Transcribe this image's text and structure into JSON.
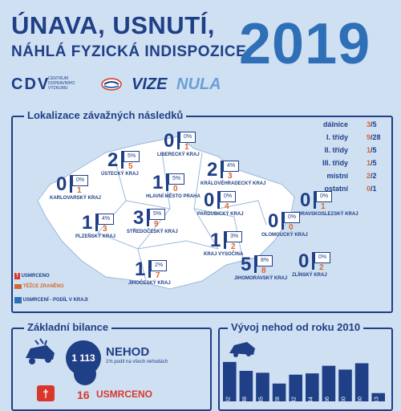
{
  "header": {
    "title_line1": "ÚNAVA, USNUTÍ,",
    "title_line2": "NÁHLÁ FYZICKÁ INDISPOZICE",
    "year": "2019"
  },
  "logos": {
    "cdv": "CDV",
    "cdv_text_1": "CENTRUM",
    "cdv_text_2": "DOPRAVNÍHO",
    "cdv_text_3": "VÝZKUMU",
    "vize": "VIZE",
    "nula": "NULA"
  },
  "map_panel": {
    "title": "Lokalizace závažných následků"
  },
  "regions": [
    {
      "name": "LIBERECKÝ KRAJ",
      "deaths": "0",
      "injured": "1",
      "pct": "0%"
    },
    {
      "name": "ÚSTECKÝ KRAJ",
      "deaths": "2",
      "injured": "5",
      "pct": "5%"
    },
    {
      "name": "KARLOVARSKÝ KRAJ",
      "deaths": "0",
      "injured": "1",
      "pct": "0%"
    },
    {
      "name": "HLAVNÍ MĚSTO PRAHA",
      "deaths": "1",
      "injured": "0",
      "pct": "5%"
    },
    {
      "name": "KRÁLOVÉHRADECKÝ KRAJ",
      "deaths": "2",
      "injured": "3",
      "pct": "4%"
    },
    {
      "name": "PLZEŇSKÝ KRAJ",
      "deaths": "1",
      "injured": "3",
      "pct": "4%"
    },
    {
      "name": "STŘEDOČESKÝ KRAJ",
      "deaths": "3",
      "injured": "9",
      "pct": "5%"
    },
    {
      "name": "PARDUBICKÝ KRAJ",
      "deaths": "0",
      "injured": "4",
      "pct": "0%"
    },
    {
      "name": "MORAVSKOSLEZSKÝ KRAJ",
      "deaths": "0",
      "injured": "1",
      "pct": "0%"
    },
    {
      "name": "OLOMOUCKÝ KRAJ",
      "deaths": "0",
      "injured": "0",
      "pct": "0%"
    },
    {
      "name": "KRAJ VYSOČINA",
      "deaths": "1",
      "injured": "2",
      "pct": "3%"
    },
    {
      "name": "JIHOČESKÝ KRAJ",
      "deaths": "1",
      "injured": "7",
      "pct": "2%"
    },
    {
      "name": "JIHOMORAVSKÝ KRAJ",
      "deaths": "5",
      "injured": "8",
      "pct": "8%"
    },
    {
      "name": "ZLÍNSKÝ KRAJ",
      "deaths": "0",
      "injured": "2",
      "pct": "0%"
    }
  ],
  "road_table": [
    {
      "label": "dálnice",
      "killed": "3",
      "total": "/5"
    },
    {
      "label": "I. třídy",
      "killed": "9",
      "total": "/28"
    },
    {
      "label": "II. třídy",
      "killed": "1",
      "total": "/5"
    },
    {
      "label": "III. třídy",
      "killed": "1",
      "total": "/5"
    },
    {
      "label": "místní",
      "killed": "2",
      "total": "/2"
    },
    {
      "label": "ostatní",
      "killed": "0",
      "total": "/1"
    }
  ],
  "legend": {
    "killed": "USMRCENO",
    "injured": "TĚŽCE ZRANĚNO",
    "share": "USMRCENÍ - PODÍL V KRAJI"
  },
  "basic_panel": {
    "title": "Základní bilance",
    "accidents_value": "1 113",
    "accidents_label": "NEHOD",
    "accidents_sub": "1% podíl na všech nehodách",
    "killed_value": "16",
    "killed_label": "USMRCENO"
  },
  "trend_panel": {
    "title": "Vývoj nehod od roku 2010"
  },
  "chart_data": {
    "type": "bar",
    "categories": [
      "2010",
      "2011",
      "2012",
      "2013",
      "2014",
      "2015",
      "2016",
      "2017",
      "2018",
      "2019"
    ],
    "values": [
      62,
      48,
      45,
      28,
      42,
      44,
      56,
      50,
      60,
      13
    ],
    "title": "",
    "xlabel": "",
    "ylabel": ""
  },
  "colors": {
    "navy": "#1f3f87",
    "blue": "#2e6fb8",
    "orange": "#d9672b",
    "red": "#d9372b",
    "background": "#cfe0f2",
    "map": "#ffffff"
  }
}
